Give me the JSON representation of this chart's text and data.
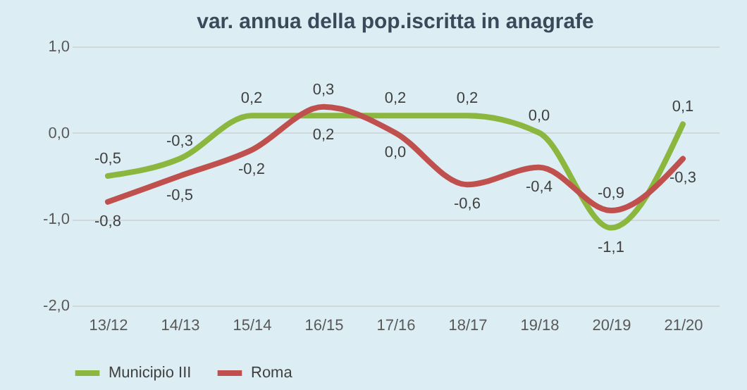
{
  "chart_data": {
    "type": "line",
    "title": "var. annua della pop.iscritta in anagrafe",
    "categories": [
      "13/12",
      "14/13",
      "15/14",
      "16/15",
      "17/16",
      "18/17",
      "19/18",
      "20/19",
      "21/20"
    ],
    "series": [
      {
        "name": "Municipio III",
        "color": "#8cb73f",
        "values": [
          -0.5,
          -0.3,
          0.2,
          0.2,
          0.2,
          0.2,
          0.0,
          -1.1,
          0.1
        ],
        "value_labels": [
          "-0,5",
          "-0,3",
          "0,2",
          "0,2",
          "0,2",
          "0,2",
          "0,0",
          "-1,1",
          "0,1"
        ]
      },
      {
        "name": "Roma",
        "color": "#c0504d",
        "values": [
          -0.8,
          -0.5,
          -0.2,
          0.3,
          0.0,
          -0.6,
          -0.4,
          -0.9,
          -0.3
        ],
        "value_labels": [
          "-0,8",
          "-0,5",
          "-0,2",
          "0,3",
          "0,0",
          "-0,6",
          "-0,4",
          "-0,9",
          "-0,3"
        ]
      }
    ],
    "ylim": [
      -2.0,
      1.0
    ],
    "yticks": [
      {
        "value": -2.0,
        "label": "-2,0"
      },
      {
        "value": -1.0,
        "label": "-1,0"
      },
      {
        "value": 0.0,
        "label": "0,0"
      },
      {
        "value": 1.0,
        "label": "1,0"
      }
    ],
    "grid": "y",
    "legend": "bottom",
    "marker": "none",
    "line_style": "solid"
  }
}
